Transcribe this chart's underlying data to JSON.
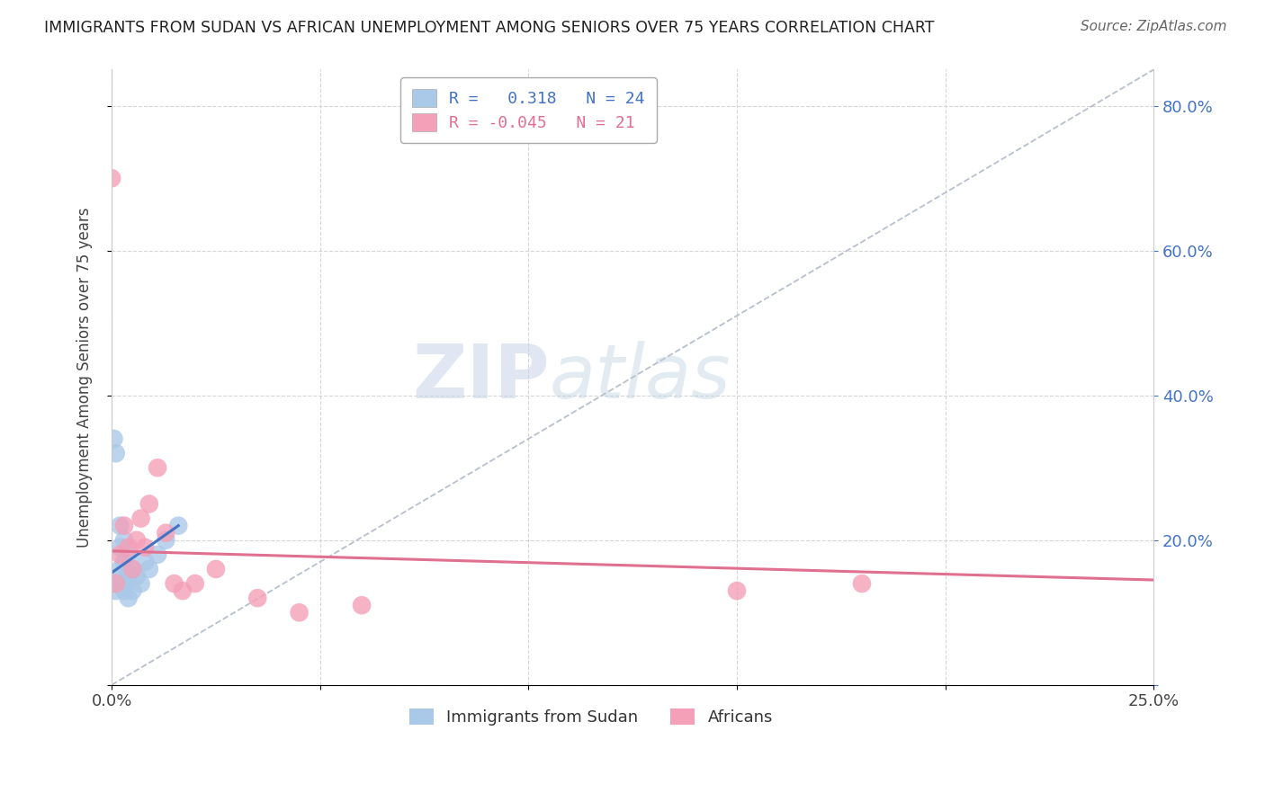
{
  "title": "IMMIGRANTS FROM SUDAN VS AFRICAN UNEMPLOYMENT AMONG SENIORS OVER 75 YEARS CORRELATION CHART",
  "source": "Source: ZipAtlas.com",
  "ylabel": "Unemployment Among Seniors over 75 years",
  "xmin": 0.0,
  "xmax": 0.25,
  "ymin": 0.0,
  "ymax": 0.85,
  "xtick_vals": [
    0.0,
    0.05,
    0.1,
    0.15,
    0.2,
    0.25
  ],
  "xtick_labels": [
    "0.0%",
    "",
    "",
    "",
    "",
    "25.0%"
  ],
  "ytick_vals": [
    0.0,
    0.2,
    0.4,
    0.6,
    0.8
  ],
  "ytick_labels": [
    "",
    "20.0%",
    "40.0%",
    "60.0%",
    "80.0%"
  ],
  "legend1_label": "R =   0.318   N = 24",
  "legend2_label": "R = -0.045   N = 21",
  "blue_color": "#aac8e8",
  "blue_line_color": "#4472c4",
  "pink_color": "#f4a0b8",
  "pink_line_color": "#e07090",
  "watermark_zip": "ZIP",
  "watermark_atlas": "atlas",
  "blue_scatter_x": [
    0.0,
    0.0005,
    0.001,
    0.001,
    0.0015,
    0.002,
    0.002,
    0.002,
    0.003,
    0.003,
    0.003,
    0.003,
    0.004,
    0.004,
    0.004,
    0.005,
    0.005,
    0.006,
    0.007,
    0.008,
    0.009,
    0.011,
    0.013,
    0.016
  ],
  "blue_scatter_y": [
    0.14,
    0.34,
    0.32,
    0.13,
    0.15,
    0.16,
    0.19,
    0.22,
    0.14,
    0.17,
    0.2,
    0.13,
    0.12,
    0.15,
    0.18,
    0.13,
    0.16,
    0.15,
    0.14,
    0.17,
    0.16,
    0.18,
    0.2,
    0.22
  ],
  "pink_scatter_x": [
    0.0,
    0.001,
    0.002,
    0.003,
    0.004,
    0.005,
    0.006,
    0.007,
    0.008,
    0.009,
    0.011,
    0.013,
    0.015,
    0.017,
    0.02,
    0.025,
    0.035,
    0.045,
    0.06,
    0.15,
    0.18
  ],
  "pink_scatter_y": [
    0.7,
    0.14,
    0.18,
    0.22,
    0.19,
    0.16,
    0.2,
    0.23,
    0.19,
    0.25,
    0.3,
    0.21,
    0.14,
    0.13,
    0.14,
    0.16,
    0.12,
    0.1,
    0.11,
    0.13,
    0.14
  ],
  "blue_trend_x": [
    0.0,
    0.016
  ],
  "blue_trend_y": [
    0.155,
    0.22
  ],
  "pink_trend_x": [
    0.0,
    0.25
  ],
  "pink_trend_y": [
    0.185,
    0.145
  ]
}
